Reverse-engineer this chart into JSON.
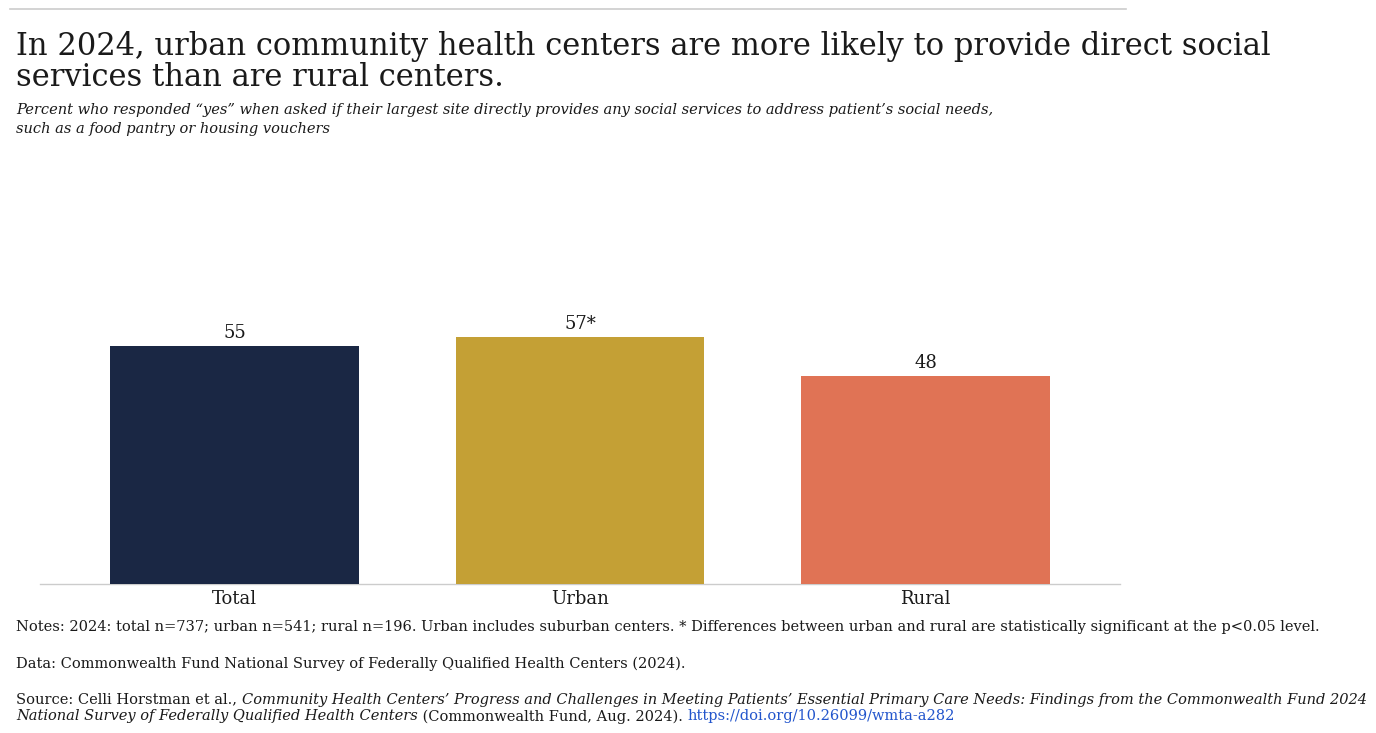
{
  "title_line1": "In 2024, urban community health centers are more likely to provide direct social",
  "title_line2": "services than are rural centers.",
  "subtitle": "Percent who responded “yes” when asked if their largest site directly provides any social services to address patient’s social needs,\nsuch as a food pantry or housing vouchers",
  "categories": [
    "Total",
    "Urban",
    "Rural"
  ],
  "values": [
    55,
    57,
    48
  ],
  "bar_labels": [
    "55",
    "57*",
    "48"
  ],
  "bar_colors": [
    "#1a2744",
    "#c4a035",
    "#e07355"
  ],
  "notes": "Notes: 2024: total n=737; urban n=541; rural n=196. Urban includes suburban centers. * Differences between urban and rural are statistically significant at the p<0.05 level.",
  "data_line": "Data: Commonwealth Fund National Survey of Federally Qualified Health Centers (2024).",
  "source_plain": "Source: Celli Horstman et al., ",
  "source_italic": "Community Health Centers’ Progress and Challenges in Meeting Patients’ Essential Primary Care Needs: Findings from the Commonwealth Fund 2024\nNational Survey of Federally Qualified Health Centers",
  "source_italic_line1": "Community Health Centers’ Progress and Challenges in Meeting Patients’ Essential Primary Care Needs: Findings from the Commonwealth Fund 2024",
  "source_italic_line2": "National Survey of Federally Qualified Health Centers",
  "source_plain2": " (Commonwealth Fund, Aug. 2024). ",
  "source_link": "https://doi.org/10.26099/wmta-a282",
  "background_color": "#ffffff",
  "bar_label_fontsize": 13,
  "tick_label_fontsize": 13,
  "notes_fontsize": 10.5,
  "title_fontsize": 22,
  "ylim": [
    0,
    75
  ]
}
